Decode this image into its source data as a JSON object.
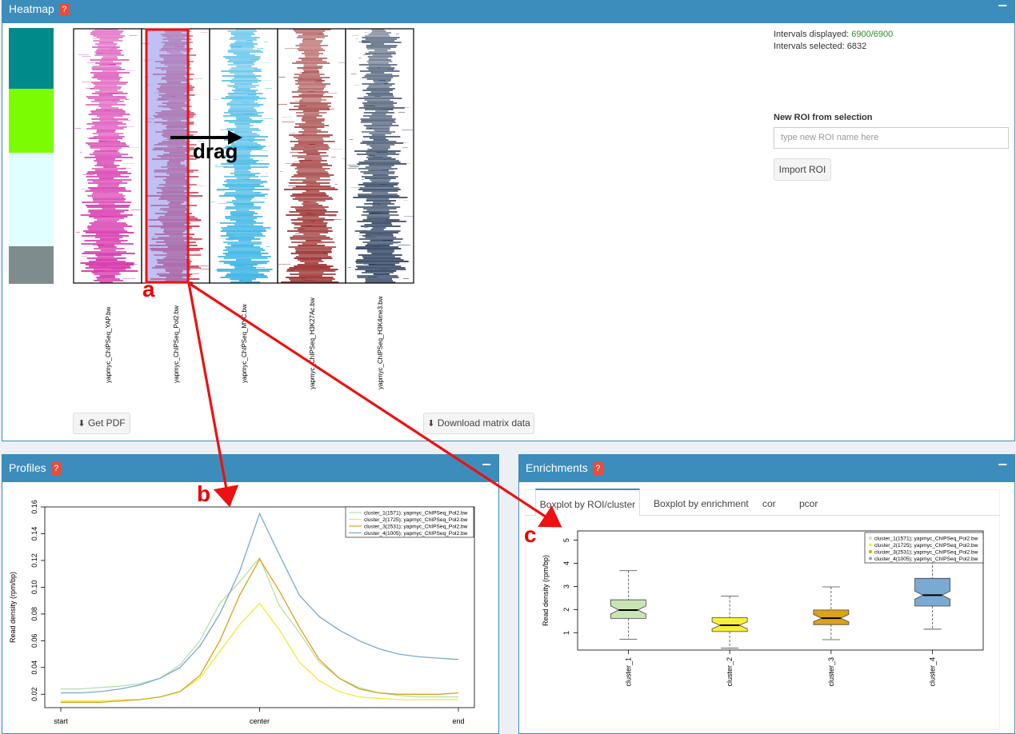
{
  "heatmap_panel": {
    "title": "Heatmap",
    "help_label": "?",
    "collapse_label": "−",
    "intervals_displayed_label": "Intervals displayed: ",
    "intervals_displayed_value": "6900/6900",
    "intervals_selected_label": "Intervals selected: ",
    "intervals_selected_value": "6832",
    "new_roi_heading": "New ROI from selection",
    "roi_input_placeholder": "type new ROI name here",
    "import_roi_label": "Import ROI",
    "get_pdf_label": "Get PDF",
    "download_matrix_label": "Download matrix data",
    "drag_label": "drag",
    "cluster_colors": [
      "#008b8b",
      "#7cfc00",
      "#e0ffff",
      "#7f8c8d"
    ],
    "tracks": [
      {
        "label": "yapmyc_ChIPSeq_YAP.bw",
        "color": "#d0139e"
      },
      {
        "label": "yapmyc_ChIPSeq_Pol2.bw",
        "color": "#c81e3c"
      },
      {
        "label": "yapmyc_ChIPSeq_MYC.bw",
        "color": "#19a8e0"
      },
      {
        "label": "yapmyc_ChIPSeq_H3K27Ac.bw",
        "color": "#8b0d0d"
      },
      {
        "label": "yapmyc_ChIPSeq_H3K4me3.bw",
        "color": "#0f2548"
      }
    ]
  },
  "annotations": {
    "a": "a",
    "b": "b",
    "c": "c"
  },
  "profiles_panel": {
    "title": "Profiles",
    "help_label": "?",
    "collapse_label": "−"
  },
  "enrichments_panel": {
    "title": "Enrichments",
    "help_label": "?",
    "collapse_label": "−",
    "tabs": [
      "Boxplot by ROI/cluster",
      "Boxplot by enrichment",
      "cor",
      "pcor"
    ]
  },
  "chart_data": [
    {
      "type": "line",
      "ylabel": "Read density (rpm/bp)",
      "x_ticks": [
        "start",
        "center",
        "end"
      ],
      "y_ticks": [
        0.02,
        0.04,
        0.06,
        0.08,
        0.1,
        0.12,
        0.14,
        0.16
      ],
      "ylim": [
        0.01,
        0.16
      ],
      "legend_position": "top-right",
      "x": [
        0,
        1,
        2,
        3,
        4,
        5,
        6,
        7,
        8,
        9,
        10,
        11,
        12,
        13,
        14,
        15,
        16,
        17,
        18,
        19,
        20
      ],
      "series": [
        {
          "name": "cluster_1(1571); yapmyc_ChIPSeq_Pol2.bw",
          "color": "#b7e0a8",
          "values": [
            0.024,
            0.024,
            0.025,
            0.026,
            0.028,
            0.032,
            0.042,
            0.06,
            0.088,
            0.104,
            0.122,
            0.086,
            0.066,
            0.044,
            0.032,
            0.025,
            0.021,
            0.019,
            0.018,
            0.018,
            0.018
          ]
        },
        {
          "name": "cluster_2(1725); yapmyc_ChIPSeq_Pol2.bw",
          "color": "#f2ea3a",
          "values": [
            0.015,
            0.015,
            0.015,
            0.016,
            0.016,
            0.018,
            0.022,
            0.032,
            0.052,
            0.072,
            0.088,
            0.068,
            0.044,
            0.03,
            0.022,
            0.018,
            0.017,
            0.016,
            0.016,
            0.016,
            0.016
          ]
        },
        {
          "name": "cluster_3(2531); yapmyc_ChIPSeq_Pol2.bw",
          "color": "#d9a21a",
          "values": [
            0.014,
            0.014,
            0.014,
            0.015,
            0.016,
            0.018,
            0.022,
            0.034,
            0.06,
            0.094,
            0.121,
            0.097,
            0.07,
            0.046,
            0.032,
            0.024,
            0.021,
            0.02,
            0.02,
            0.02,
            0.021
          ]
        },
        {
          "name": "cluster_4(1005); yapmyc_ChIPSeq_Pol2.bw",
          "color": "#79a8cf",
          "values": [
            0.021,
            0.021,
            0.022,
            0.024,
            0.027,
            0.032,
            0.04,
            0.056,
            0.08,
            0.112,
            0.155,
            0.124,
            0.094,
            0.078,
            0.068,
            0.06,
            0.054,
            0.05,
            0.048,
            0.047,
            0.046
          ]
        }
      ]
    },
    {
      "type": "boxplot",
      "ylabel": "Read density  (rpm/bp)",
      "y_ticks": [
        1,
        2,
        3,
        4,
        5
      ],
      "ylim": [
        0.25,
        5.4
      ],
      "legend_position": "top-right",
      "categories": [
        "cluster_1",
        "cluster_2",
        "cluster_3",
        "cluster_4"
      ],
      "series": [
        {
          "name": "cluster_1(1571); yapmyc_ChIPSeq_Pol2.bw",
          "color": "#c8e6b5",
          "min": 0.72,
          "q1": 1.62,
          "median": 1.98,
          "q3": 2.42,
          "max": 3.68
        },
        {
          "name": "cluster_2(1725); yapmyc_ChIPSeq_Pol2.bw",
          "color": "#f7f03a",
          "min": 0.33,
          "q1": 1.05,
          "median": 1.32,
          "q3": 1.65,
          "max": 2.58
        },
        {
          "name": "cluster_3(2531); yapmyc_ChIPSeq_Pol2.bw",
          "color": "#dba21a",
          "min": 0.7,
          "q1": 1.35,
          "median": 1.63,
          "q3": 1.98,
          "max": 2.98
        },
        {
          "name": "cluster_4(1005); yapmyc_ChIPSeq_Pol2.bw",
          "color": "#7aa9d3",
          "min": 1.15,
          "q1": 2.15,
          "median": 2.62,
          "q3": 3.35,
          "max": 4.95
        }
      ]
    }
  ]
}
